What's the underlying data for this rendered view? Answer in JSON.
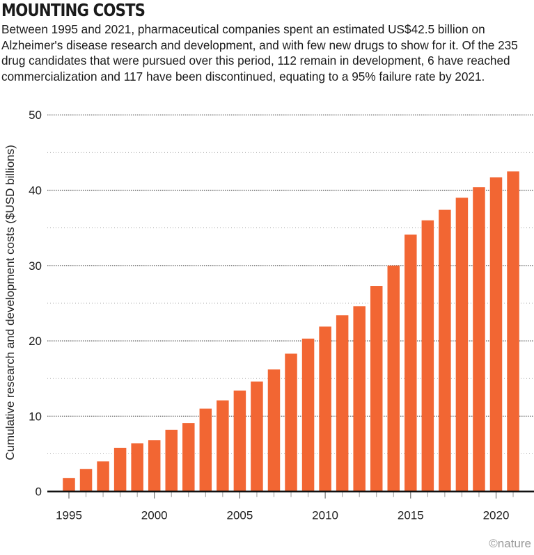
{
  "title": "MOUNTING COSTS",
  "subtitle": "Between 1995 and 2021, pharmaceutical companies spent an estimated US$42.5 billion on Alzheimer's disease research and development, and with few new drugs to show for it. Of the 235 drug candidates that were pursued over this period, 112 remain in development, 6 have reached commercialization and 117 have been discontinued, equating to a 95% failure rate by 2021.",
  "credit": "©nature",
  "chart_data": {
    "type": "bar",
    "title": "MOUNTING COSTS",
    "xlabel": "",
    "ylabel": "Cumulative research and development costs ($USD billions)",
    "categories": [
      1995,
      1996,
      1997,
      1998,
      1999,
      2000,
      2001,
      2002,
      2003,
      2004,
      2005,
      2006,
      2007,
      2008,
      2009,
      2010,
      2011,
      2012,
      2013,
      2014,
      2015,
      2016,
      2017,
      2018,
      2019,
      2020,
      2021
    ],
    "values": [
      1.8,
      3.0,
      4.0,
      5.8,
      6.4,
      6.8,
      8.2,
      9.1,
      11.0,
      12.1,
      13.4,
      14.6,
      16.2,
      18.3,
      20.3,
      21.9,
      23.4,
      24.6,
      27.3,
      30.0,
      34.1,
      36.0,
      37.4,
      39.0,
      40.4,
      41.7,
      42.5
    ],
    "ylim": [
      0,
      50
    ],
    "yticks": [
      0,
      10,
      20,
      30,
      40,
      50
    ],
    "xticklabels": [
      "1995",
      "2000",
      "2005",
      "2010",
      "2015",
      "2020"
    ],
    "grid": true,
    "bar_color": "#f26633"
  }
}
